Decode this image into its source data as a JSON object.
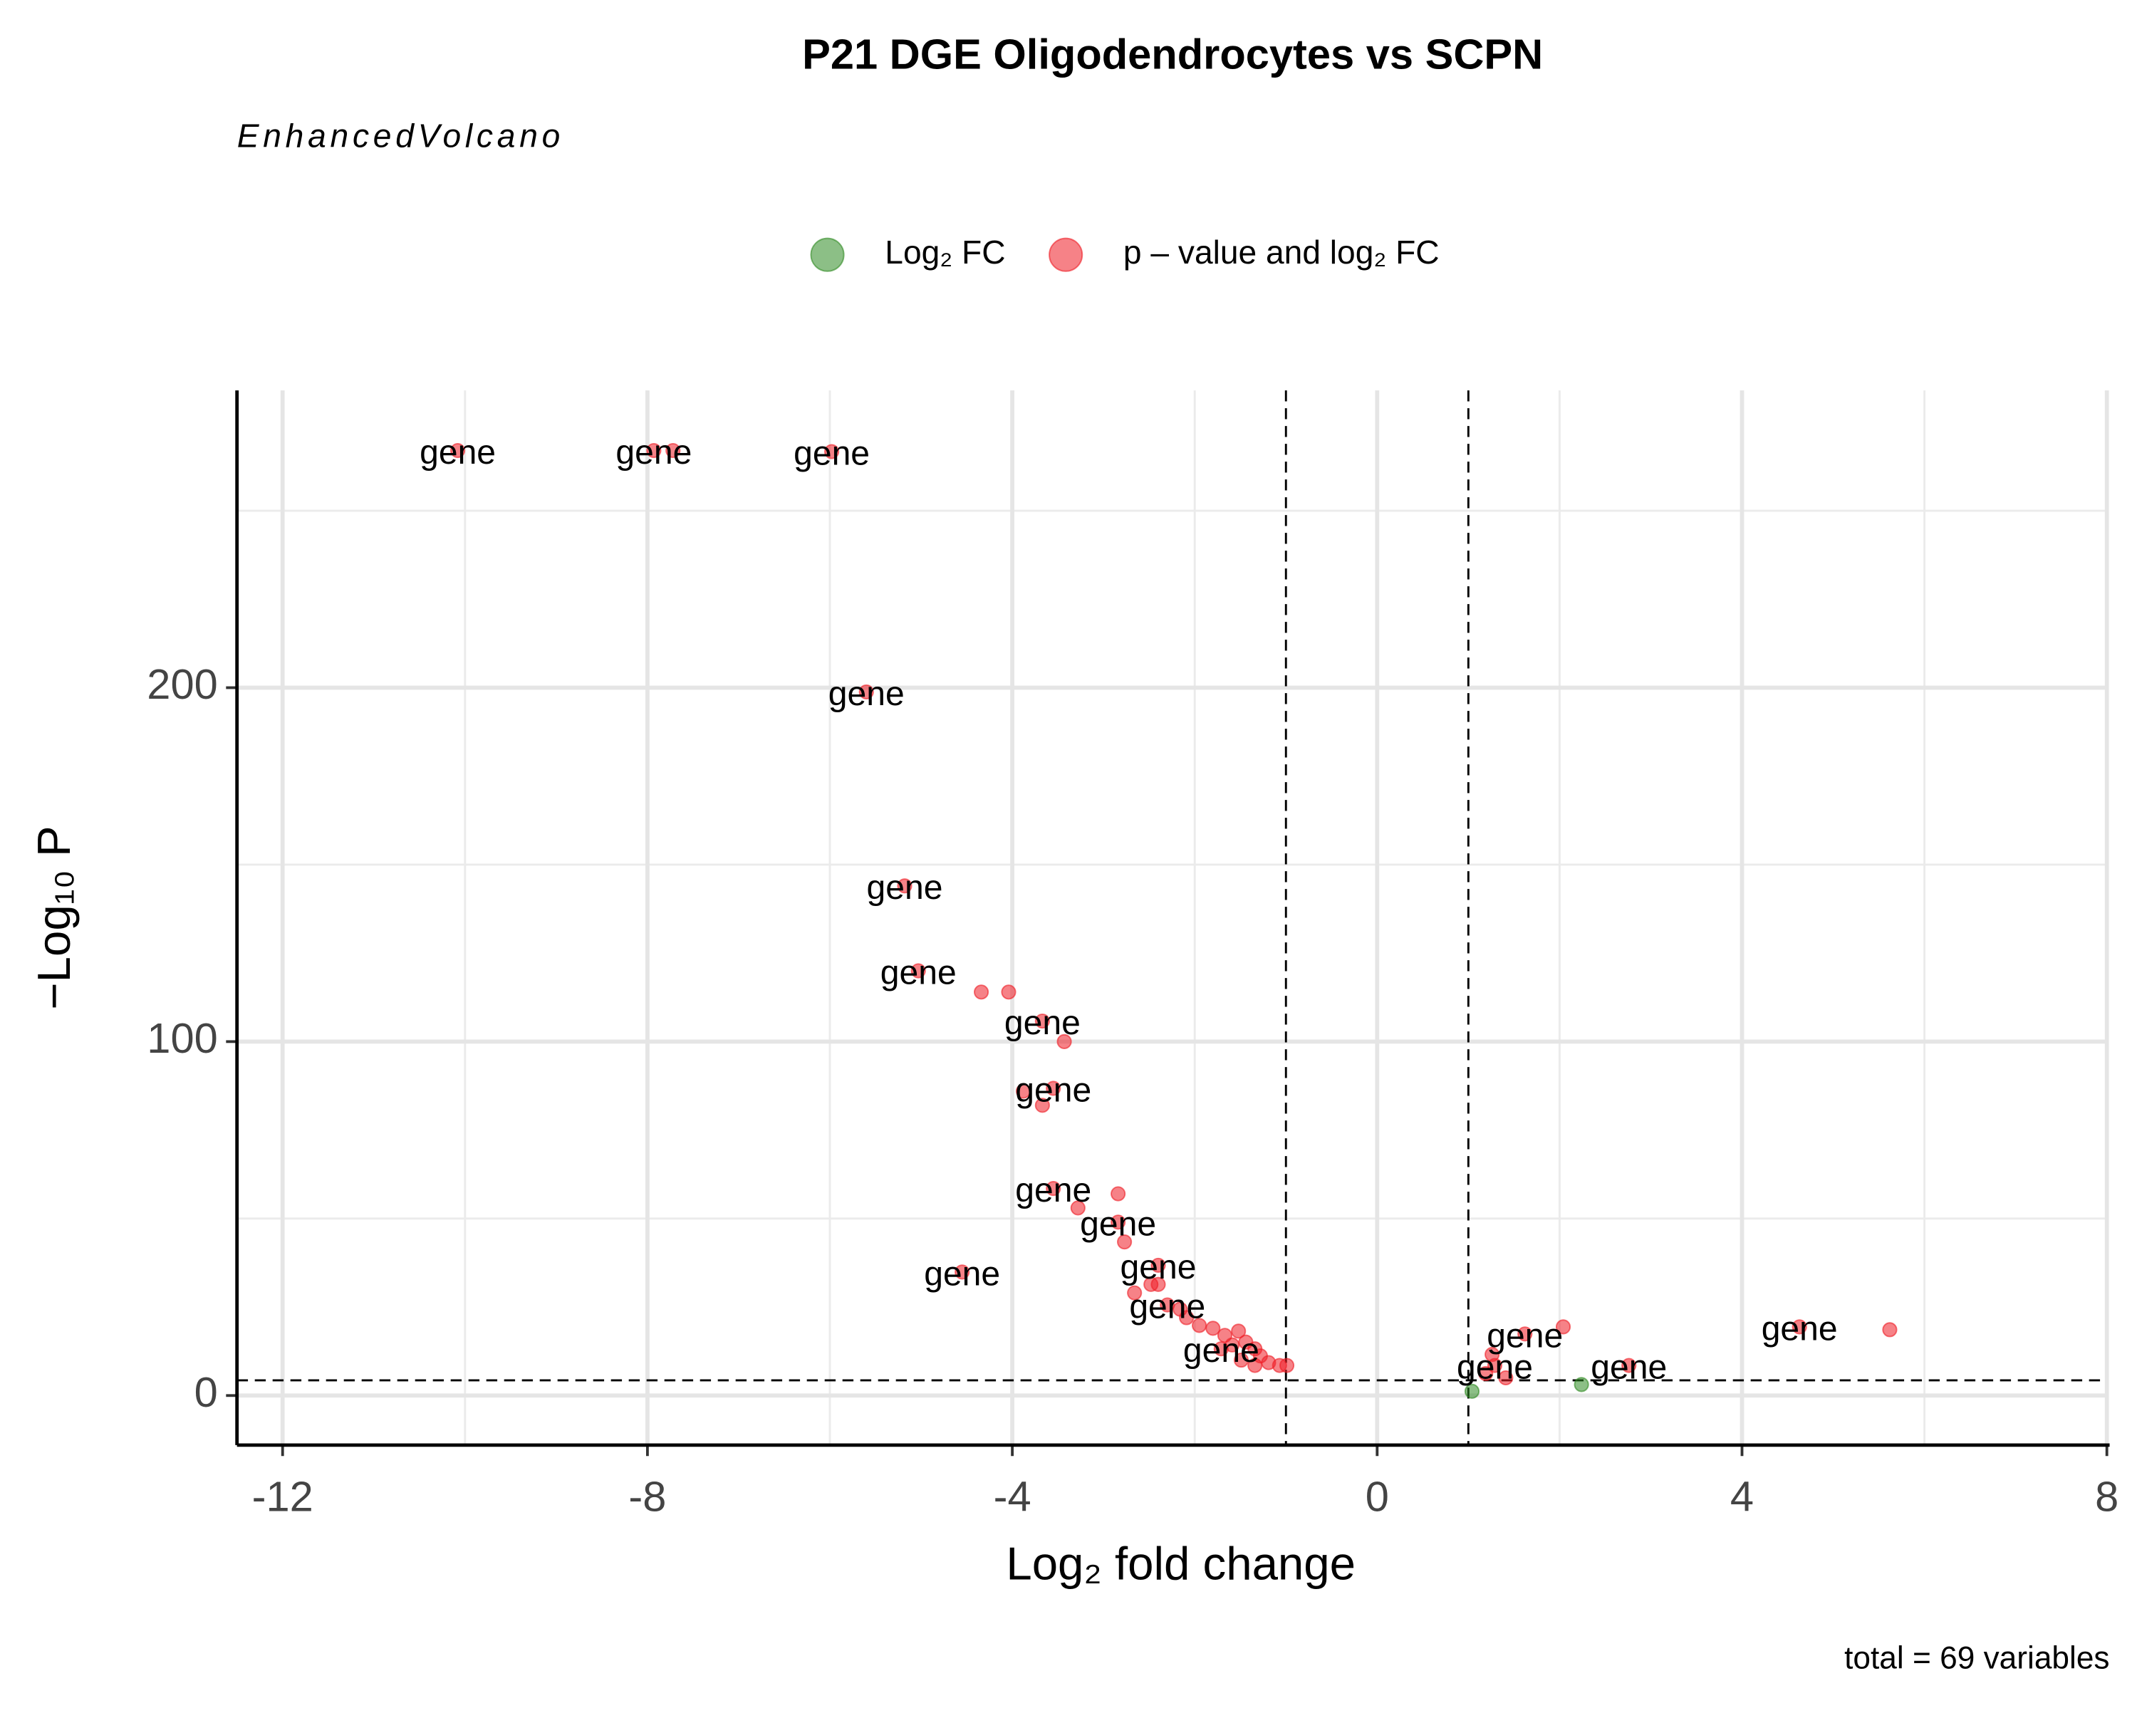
{
  "chart_data": {
    "type": "scatter",
    "title": "P21 DGE Oligodendrocytes vs SCPN",
    "subtitle": "EnhancedVolcano",
    "caption": "total = 69 variables",
    "x_label": "Log₂ fold change",
    "y_label": "−Log₁₀ P",
    "xlim": [
      -12.5,
      8
    ],
    "ylim": [
      -14,
      284
    ],
    "xticks": [
      -12,
      -8,
      -4,
      0,
      4,
      8
    ],
    "yticks": [
      0,
      100,
      200
    ],
    "xminor": [
      -10,
      -6,
      -2,
      2,
      6
    ],
    "yminor": [
      50,
      150,
      250
    ],
    "grid": true,
    "cutoffs": {
      "x": [
        -1,
        1
      ],
      "y": 4.3
    },
    "legend": "top",
    "series": [
      {
        "name": "Log₂ FC",
        "color": "#2e8b22",
        "x": [
          1.04,
          2.24
        ],
        "values": [
          1.2,
          3.1
        ],
        "labels": [
          null,
          null
        ]
      },
      {
        "name": "p – value and log₂ FC",
        "color": "#ee1c25",
        "x": [
          -10.08,
          -7.93,
          -7.72,
          -5.98,
          -5.6,
          -5.18,
          -5.03,
          -4.34,
          -4.04,
          -3.67,
          -3.43,
          -3.55,
          -3.67,
          -3.88,
          -3.55,
          -2.84,
          -3.28,
          -2.84,
          -2.77,
          -4.55,
          -2.4,
          -2.4,
          -2.48,
          -2.66,
          -2.3,
          -2.16,
          -2.09,
          -1.95,
          -1.8,
          -1.67,
          -1.52,
          -1.71,
          -1.59,
          -1.44,
          -1.34,
          -1.28,
          -1.49,
          -1.19,
          -1.07,
          -0.99,
          -1.34,
          1.26,
          1.29,
          1.41,
          1.19,
          1.62,
          2.04,
          2.76,
          4.63,
          5.62
        ],
        "values": [
          267,
          267,
          267,
          266.7,
          198.8,
          144,
          120,
          114,
          114,
          105.8,
          100,
          86.8,
          82,
          86,
          58.5,
          57,
          53,
          49,
          43.4,
          34.9,
          36.8,
          31.4,
          31.4,
          29,
          25.6,
          24.4,
          22,
          19.8,
          19,
          17,
          18.2,
          13.2,
          14.3,
          15.1,
          13.2,
          11.2,
          10,
          9.3,
          8.5,
          8.5,
          8.5,
          11.6,
          8.5,
          5,
          6.2,
          17.4,
          19.4,
          8.5,
          19.4,
          18.6
        ],
        "labels": [
          "gene",
          "gene",
          null,
          "gene",
          "gene",
          "gene",
          "gene",
          null,
          null,
          "gene",
          null,
          "gene",
          null,
          null,
          "gene",
          null,
          null,
          "gene",
          null,
          "gene",
          "gene",
          null,
          null,
          null,
          "gene",
          null,
          null,
          null,
          null,
          null,
          null,
          "gene",
          null,
          null,
          null,
          null,
          null,
          null,
          null,
          null,
          null,
          null,
          "gene",
          null,
          null,
          "gene",
          null,
          "gene",
          "gene",
          null
        ]
      }
    ]
  }
}
